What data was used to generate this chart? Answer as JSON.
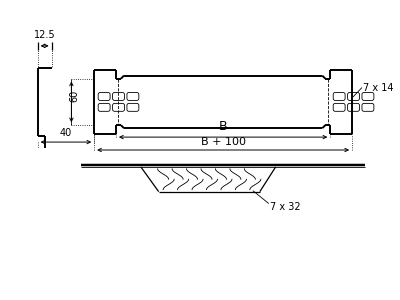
{
  "bg_color": "#ffffff",
  "line_color": "#000000",
  "annotations": {
    "dim_125": "12.5",
    "dim_60": "60",
    "dim_40": "40",
    "dim_7x14": "7 x 14",
    "dim_B": "B",
    "dim_B100": "B + 100",
    "dim_7x32": "7 x 32"
  },
  "figsize": [
    4.0,
    3.0
  ],
  "dpi": 100
}
